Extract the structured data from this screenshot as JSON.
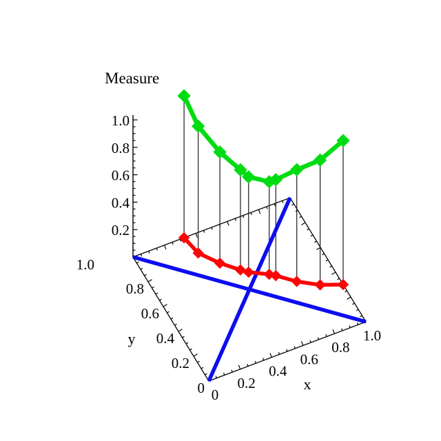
{
  "colors": {
    "green": "#00DC12",
    "red": "#FA0606",
    "blue": "#0D0DF0",
    "axis": "#000000",
    "dropline": "#1A1A1A",
    "background": "#FFFFFF"
  },
  "axes": {
    "x": {
      "label": "x",
      "tick_labels": [
        "0",
        "0.2",
        "0.4",
        "0.6",
        "0.8",
        "1.0"
      ],
      "range": [
        0,
        1
      ],
      "minor_tick_step": 0.05
    },
    "y": {
      "label": "y",
      "tick_labels": [
        "0",
        "0.2",
        "0.4",
        "0.6",
        "0.8",
        "1.0"
      ],
      "range": [
        0,
        1
      ],
      "minor_tick_step": 0.05
    },
    "z": {
      "label": "Measure",
      "tick_labels": [
        "0.2",
        "0.4",
        "0.6",
        "0.8",
        "1.0"
      ],
      "range": [
        0,
        1.05
      ],
      "minor_tick_step": 0.05
    }
  },
  "chart_data": {
    "type": "line",
    "subtype": "3d-space-curves-with-droplines",
    "xlabel": "x",
    "ylabel": "y",
    "zlabel": "Measure",
    "x_range": [
      0,
      1
    ],
    "y_range": [
      0,
      1
    ],
    "z_range": [
      0,
      1.05
    ],
    "grid": false,
    "legend": "none",
    "series": [
      {
        "name": "measure-curve",
        "color": "#00DC12",
        "marker": "diamond",
        "points_xyz": [
          [
            0.325,
            1.0,
            1.035
          ],
          [
            0.35,
            0.865,
            0.925
          ],
          [
            0.43,
            0.745,
            0.81
          ],
          [
            0.515,
            0.65,
            0.73
          ],
          [
            0.55,
            0.615,
            0.695
          ],
          [
            0.65,
            0.55,
            0.675
          ],
          [
            0.68,
            0.525,
            0.7
          ],
          [
            0.77,
            0.435,
            0.815
          ],
          [
            0.88,
            0.355,
            0.91
          ],
          [
            1.0,
            0.3,
            1.05
          ]
        ]
      },
      {
        "name": "base-projection-curve",
        "color": "#FA0606",
        "marker": "diamond",
        "points_xyz": [
          [
            0.325,
            1.0,
            0
          ],
          [
            0.35,
            0.865,
            0
          ],
          [
            0.43,
            0.745,
            0
          ],
          [
            0.515,
            0.65,
            0
          ],
          [
            0.55,
            0.615,
            0
          ],
          [
            0.65,
            0.55,
            0
          ],
          [
            0.68,
            0.525,
            0
          ],
          [
            0.77,
            0.435,
            0
          ],
          [
            0.88,
            0.355,
            0
          ],
          [
            1.0,
            0.3,
            0
          ]
        ]
      }
    ],
    "reference_lines": [
      {
        "name": "base-diagonal-main",
        "color": "#0D0DF0",
        "from": [
          0,
          0,
          0
        ],
        "to": [
          1,
          1,
          0
        ]
      },
      {
        "name": "base-diagonal-anti",
        "color": "#0D0DF0",
        "from": [
          0,
          1,
          0
        ],
        "to": [
          1,
          0,
          0
        ]
      }
    ],
    "droplines": {
      "enabled": true,
      "from_series": "measure-curve",
      "to_plane": "z=0"
    }
  }
}
